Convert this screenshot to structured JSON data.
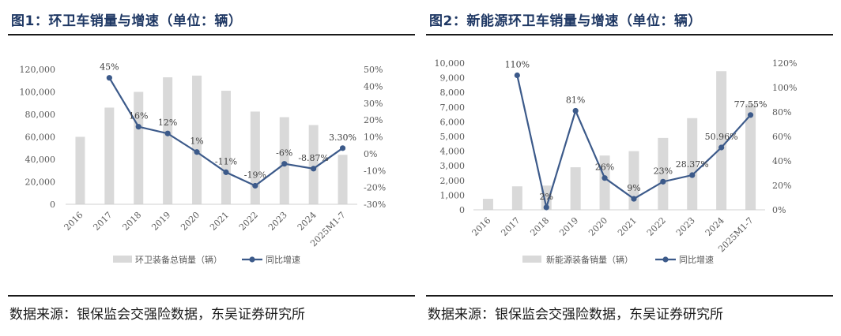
{
  "charts": [
    {
      "title": "图1：环卫车销量与增速（单位：辆）",
      "source": "数据来源：银保监会交强险数据，东吴证券研究所",
      "chart_data": {
        "type": "bar",
        "categories": [
          "2016",
          "2017",
          "2018",
          "2019",
          "2020",
          "2021",
          "2022",
          "2023",
          "2024",
          "2025M1-7"
        ],
        "series": [
          {
            "name": "环卫装备总销量（辆）",
            "kind": "bar",
            "axis": "left",
            "values": [
              60000,
              86000,
              100000,
              113000,
              114500,
              101000,
              82500,
              77500,
              70500,
              44000
            ]
          },
          {
            "name": "同比增速",
            "kind": "line",
            "axis": "right",
            "values": [
              null,
              45,
              16,
              12,
              1,
              -11,
              -19,
              -6,
              -8.87,
              3.3
            ],
            "labels": [
              "",
              "45%",
              "16%",
              "12%",
              "1%",
              "-11%",
              "-19%",
              "-6%",
              "-8.87%",
              "3.30%"
            ]
          }
        ],
        "left_axis": {
          "ylim": [
            0,
            120000
          ],
          "ticks": [
            "0",
            "20,000",
            "40,000",
            "60,000",
            "80,000",
            "100,000",
            "120,000"
          ]
        },
        "right_axis": {
          "ylim": [
            -30,
            50
          ],
          "ticks": [
            "-30%",
            "-20%",
            "-10%",
            "0%",
            "10%",
            "20%",
            "30%",
            "40%",
            "50%"
          ]
        },
        "grid": false,
        "legend": "bottom",
        "colors": {
          "bar": "#d9d9d9",
          "line": "#3c5a8a",
          "axis_text": "#595959"
        }
      }
    },
    {
      "title": "图2：新能源环卫车销量与增速（单位：辆）",
      "source": "数据来源：银保监会交强险数据，东吴证券研究所",
      "chart_data": {
        "type": "bar",
        "categories": [
          "2016",
          "2017",
          "2018",
          "2019",
          "2020",
          "2021",
          "2022",
          "2023",
          "2024",
          "2025M1-7"
        ],
        "series": [
          {
            "name": "新能源装备销量（辆）",
            "kind": "bar",
            "axis": "left",
            "values": [
              750,
              1600,
              1650,
              2900,
              3700,
              4000,
              4900,
              6250,
              9450,
              7200
            ]
          },
          {
            "name": "同比增速",
            "kind": "line",
            "axis": "right",
            "values": [
              null,
              110,
              2,
              81,
              26,
              9,
              23,
              28.37,
              50.96,
              77.55
            ],
            "labels": [
              "",
              "110%",
              "2%",
              "81%",
              "26%",
              "9%",
              "23%",
              "28.37%",
              "50.96%",
              "77.55%"
            ]
          }
        ],
        "left_axis": {
          "ylim": [
            0,
            10000
          ],
          "ticks": [
            "0",
            "1,000",
            "2,000",
            "3,000",
            "4,000",
            "5,000",
            "6,000",
            "7,000",
            "8,000",
            "9,000",
            "10,000"
          ]
        },
        "right_axis": {
          "ylim": [
            0,
            120
          ],
          "ticks": [
            "0%",
            "20%",
            "40%",
            "60%",
            "80%",
            "100%",
            "120%"
          ]
        },
        "grid": false,
        "legend": "bottom",
        "colors": {
          "bar": "#d9d9d9",
          "line": "#3c5a8a",
          "axis_text": "#595959"
        }
      }
    }
  ]
}
